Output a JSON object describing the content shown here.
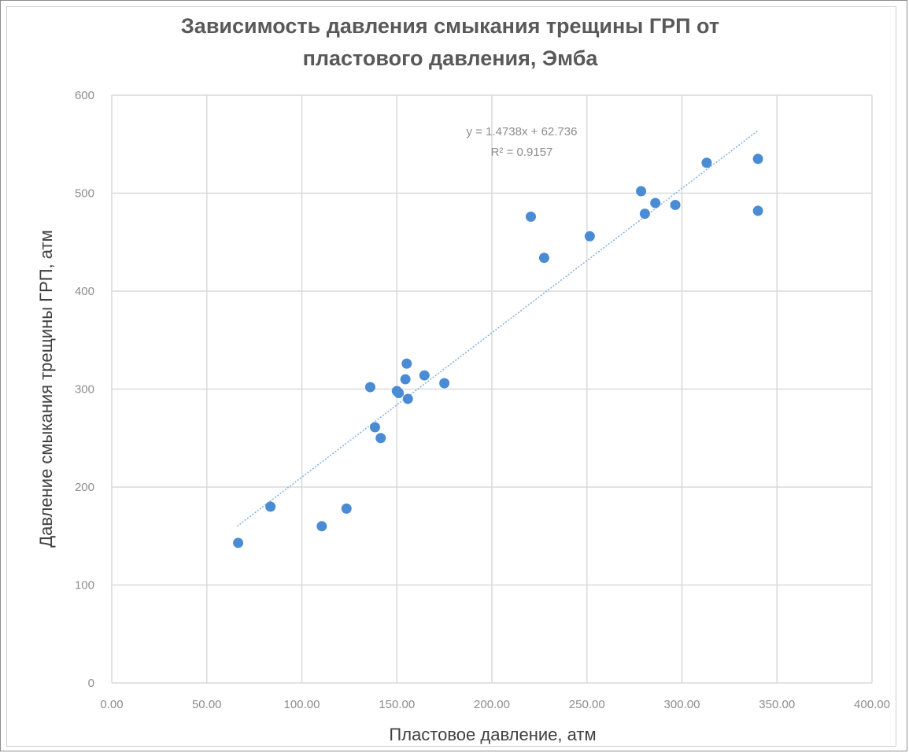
{
  "chart_data": {
    "type": "scatter",
    "title": "Зависимость давления смыкания трещины ГРП от пластового давления, Эмба",
    "title_lines": [
      "Зависимость давления смыкания трещины ГРП от",
      "пластового давления, Эмба"
    ],
    "xlabel": "Пластовое давление, атм",
    "ylabel": "Давление смыкания трещины ГРП, атм",
    "xlim": [
      0,
      400
    ],
    "ylim": [
      0,
      600
    ],
    "x_ticks": [
      0,
      50,
      100,
      150,
      200,
      250,
      300,
      350,
      400
    ],
    "x_tick_labels": [
      "0.00",
      "50.00",
      "100.00",
      "150.00",
      "200.00",
      "250.00",
      "300.00",
      "350.00",
      "400.00"
    ],
    "y_ticks": [
      0,
      100,
      200,
      300,
      400,
      500,
      600
    ],
    "y_tick_labels": [
      "0",
      "100",
      "200",
      "300",
      "400",
      "500",
      "600"
    ],
    "grid": true,
    "colors": {
      "point": "#4a8cd4",
      "trendline": "#7fb0e0",
      "grid": "#d9d9d9",
      "text": "#595959",
      "title": "#595959"
    },
    "points": [
      [
        66.5,
        143
      ],
      [
        83.5,
        180
      ],
      [
        110.5,
        160
      ],
      [
        123.5,
        178
      ],
      [
        136,
        302
      ],
      [
        138.5,
        261
      ],
      [
        141.5,
        250
      ],
      [
        150,
        298
      ],
      [
        151,
        296
      ],
      [
        154.5,
        310
      ],
      [
        155.2,
        326
      ],
      [
        155.8,
        290
      ],
      [
        164.5,
        314
      ],
      [
        175,
        306
      ],
      [
        220.5,
        476
      ],
      [
        227.5,
        434
      ],
      [
        251.5,
        456
      ],
      [
        278.5,
        502
      ],
      [
        280.5,
        479
      ],
      [
        286,
        490
      ],
      [
        296.5,
        488
      ],
      [
        313,
        531
      ],
      [
        340,
        535
      ],
      [
        340,
        482
      ]
    ],
    "trendline": {
      "type": "linear",
      "slope": 1.4738,
      "intercept": 62.736,
      "x_range": [
        66,
        340
      ],
      "equation_label": "y = 1.4738x + 62.736",
      "r2_label": "R² = 0.9157"
    }
  }
}
